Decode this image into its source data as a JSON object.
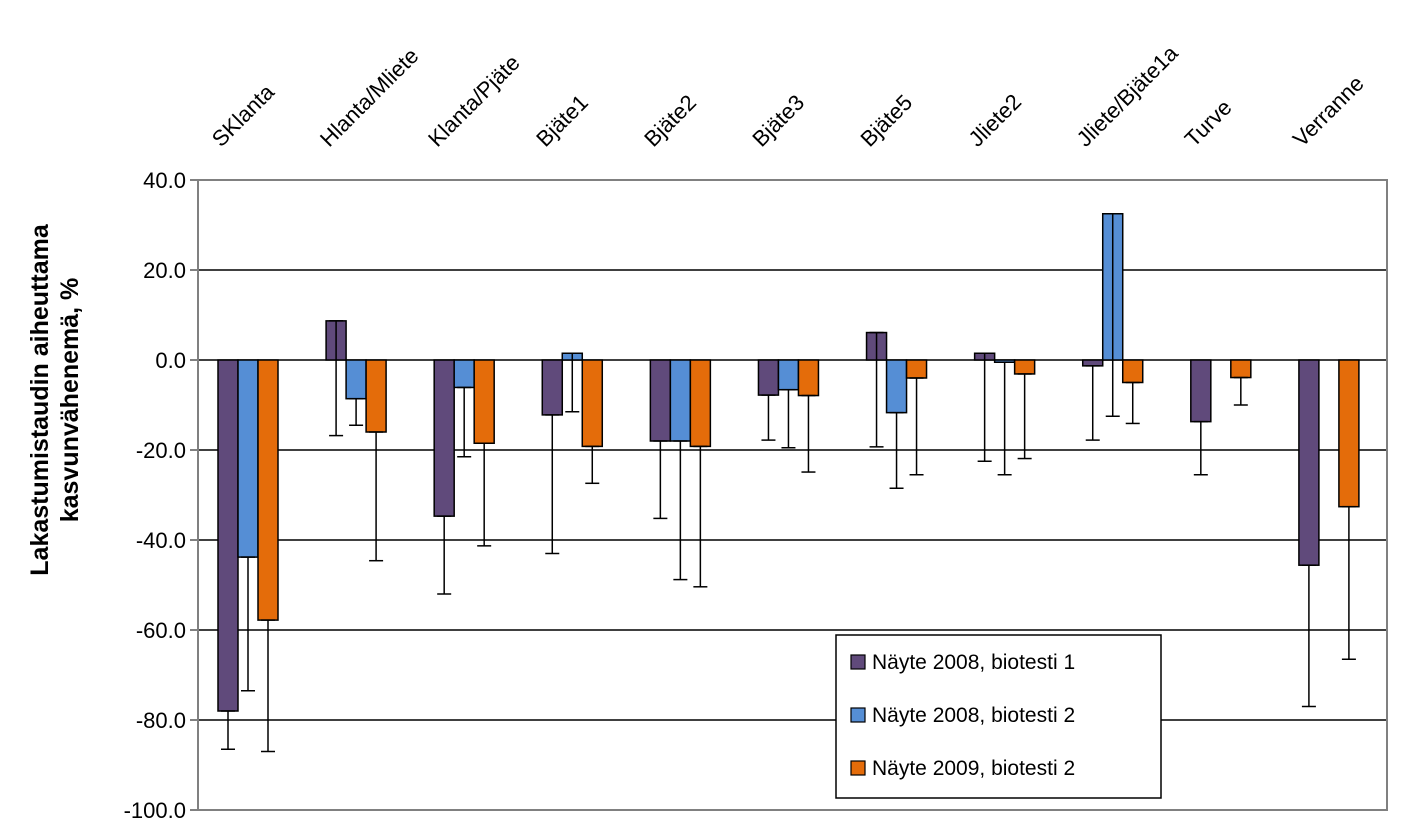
{
  "chart_data": {
    "type": "bar",
    "title": "",
    "ylabel_lines": [
      "Lakastumistaudin aiheuttama",
      "kasvunvähenemä, %"
    ],
    "xlabel": "",
    "ylim": [
      -100,
      40
    ],
    "yticks": [
      40,
      20,
      0,
      -20,
      -40,
      -60,
      -80,
      -100
    ],
    "ytick_labels": [
      "40.0",
      "20.0",
      "0.0",
      "-20.0",
      "-40.0",
      "-60.0",
      "-80.0",
      "-100.0"
    ],
    "grid": "horizontal major",
    "legend_position": "bottom-right inside plot",
    "categories": [
      "SKlanta",
      "Hlanta/Mliete",
      "Klanta/Pjäte",
      "Bjäte1",
      "Bjäte2",
      "Bjäte3",
      "Bjäte5",
      "Jliete2",
      "Jliete/Bjäte1a",
      "Turve",
      "Verranne"
    ],
    "series": [
      {
        "name": "Näyte 2008, biotesti 1",
        "color": "#604A7B",
        "values": [
          -78.0,
          8.7,
          -34.7,
          -12.2,
          -18.0,
          -7.8,
          6.1,
          1.5,
          -1.3,
          -13.7,
          -45.6
        ],
        "error_bar_end": [
          -86.5,
          -16.8,
          -52.0,
          -43.0,
          -35.2,
          -17.8,
          -19.3,
          -22.5,
          -17.8,
          -25.5,
          -77.0
        ]
      },
      {
        "name": "Näyte 2008, biotesti 2",
        "color": "#558ED5",
        "values": [
          -43.8,
          -8.6,
          -6.1,
          1.5,
          -18.0,
          -6.6,
          -11.7,
          -0.5,
          32.5,
          null,
          null
        ],
        "error_bar_end": [
          -73.5,
          -14.5,
          -21.5,
          -11.5,
          -48.8,
          -19.5,
          -28.5,
          -25.5,
          -12.5,
          null,
          null
        ]
      },
      {
        "name": "Näyte 2009, biotesti 2",
        "color": "#E46C0A",
        "values": [
          -57.8,
          -16.0,
          -18.5,
          -19.2,
          -19.2,
          -7.9,
          -4.0,
          -3.1,
          -5.0,
          -3.9,
          -32.6
        ],
        "error_bar_end": [
          -87.0,
          -44.6,
          -41.3,
          -27.4,
          -50.4,
          -24.9,
          -25.5,
          -21.9,
          -14.1,
          -10.0,
          -66.5
        ]
      }
    ]
  }
}
